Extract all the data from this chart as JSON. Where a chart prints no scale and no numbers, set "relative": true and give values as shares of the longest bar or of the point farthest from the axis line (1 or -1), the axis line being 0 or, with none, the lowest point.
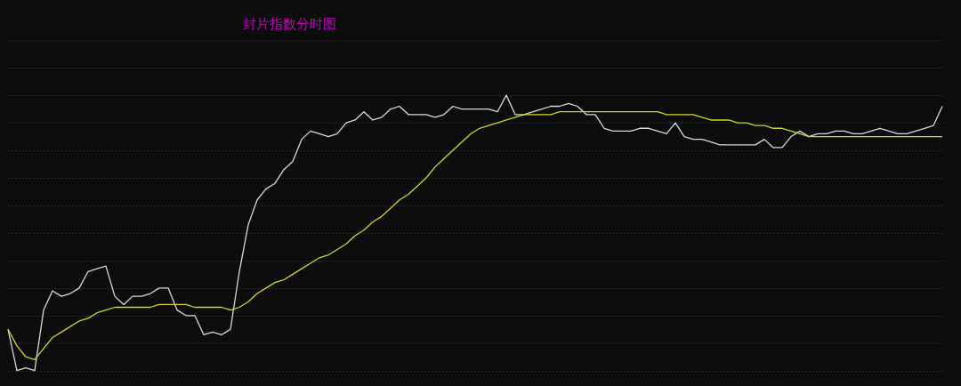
{
  "chart_data": {
    "type": "line",
    "title": "封片指数分时图",
    "relative": true,
    "grid": "y",
    "marker": "none",
    "line_style": "solid",
    "categories": [
      null,
      null,
      null,
      null,
      null,
      null,
      null,
      null,
      null,
      null,
      null,
      null,
      null,
      null,
      null,
      null,
      null,
      null,
      null,
      null,
      null,
      null,
      null,
      null,
      null,
      null,
      null,
      null,
      null,
      null,
      null,
      null,
      null,
      null,
      null,
      null,
      null,
      null,
      null,
      null,
      null,
      null,
      null,
      null,
      null,
      null,
      null,
      null,
      null,
      null,
      null,
      null,
      null,
      null,
      null,
      null,
      null,
      null,
      null,
      null,
      null,
      null,
      null,
      null,
      null,
      null,
      null,
      null,
      null,
      null,
      null,
      null,
      null,
      null,
      null,
      null,
      null,
      null,
      null,
      null,
      null,
      null,
      null,
      null,
      null,
      null,
      null,
      null,
      null,
      null,
      null,
      null,
      null,
      null,
      null,
      null,
      null,
      null,
      null,
      null,
      null,
      null,
      null,
      null,
      null,
      null
    ],
    "series": [
      {
        "color": "#d9d9d9",
        "values": [
          0.15,
          0,
          0.01,
          0,
          0.22,
          0.29,
          0.27,
          0.28,
          0.3,
          0.36,
          0.37,
          0.38,
          0.27,
          0.24,
          0.27,
          0.27,
          0.28,
          0.3,
          0.3,
          0.22,
          0.2,
          0.2,
          0.13,
          0.14,
          0.13,
          0.15,
          0.36,
          0.53,
          0.62,
          0.66,
          0.68,
          0.73,
          0.76,
          0.84,
          0.87,
          0.86,
          0.85,
          0.86,
          0.9,
          0.91,
          0.94,
          0.91,
          0.92,
          0.95,
          0.96,
          0.93,
          0.93,
          0.93,
          0.92,
          0.93,
          0.96,
          0.95,
          0.95,
          0.95,
          0.95,
          0.94,
          1,
          0.93,
          0.93,
          0.94,
          0.95,
          0.96,
          0.96,
          0.97,
          0.96,
          0.93,
          0.93,
          0.88,
          0.87,
          0.87,
          0.87,
          0.88,
          0.88,
          0.87,
          0.86,
          0.9,
          0.85,
          0.84,
          0.84,
          0.83,
          0.82,
          0.82,
          0.82,
          0.82,
          0.82,
          0.84,
          0.81,
          0.81,
          0.85,
          0.87,
          0.85,
          0.86,
          0.86,
          0.87,
          0.87,
          0.86,
          0.86,
          0.87,
          0.88,
          0.87,
          0.86,
          0.86,
          0.87,
          0.88,
          0.89,
          0.96
        ]
      },
      {
        "color": "#d4d42a",
        "values": [
          0.15,
          0.09,
          0.05,
          0.04,
          0.08,
          0.12,
          0.14,
          0.16,
          0.18,
          0.19,
          0.21,
          0.22,
          0.23,
          0.23,
          0.23,
          0.23,
          0.23,
          0.24,
          0.24,
          0.24,
          0.24,
          0.23,
          0.23,
          0.23,
          0.23,
          0.22,
          0.23,
          0.25,
          0.28,
          0.3,
          0.32,
          0.33,
          0.35,
          0.37,
          0.39,
          0.41,
          0.42,
          0.44,
          0.46,
          0.49,
          0.51,
          0.54,
          0.56,
          0.59,
          0.62,
          0.64,
          0.67,
          0.7,
          0.74,
          0.77,
          0.8,
          0.83,
          0.86,
          0.88,
          0.89,
          0.9,
          0.91,
          0.92,
          0.93,
          0.93,
          0.93,
          0.93,
          0.94,
          0.94,
          0.94,
          0.94,
          0.94,
          0.94,
          0.94,
          0.94,
          0.94,
          0.94,
          0.94,
          0.94,
          0.93,
          0.93,
          0.93,
          0.93,
          0.92,
          0.91,
          0.91,
          0.91,
          0.9,
          0.9,
          0.89,
          0.89,
          0.88,
          0.88,
          0.87,
          0.86,
          0.85,
          0.85,
          0.85,
          0.85,
          0.85,
          0.85,
          0.85,
          0.85,
          0.85,
          0.85,
          0.85,
          0.85,
          0.85,
          0.85,
          0.85,
          0.85
        ]
      }
    ]
  }
}
